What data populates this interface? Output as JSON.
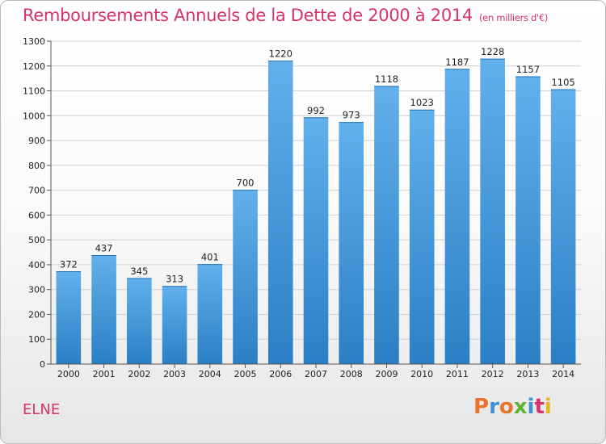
{
  "header": {
    "title": "Remboursements Annuels de la Dette de 2000 à 2014",
    "unit": "(en milliers d'€)"
  },
  "footer": {
    "city": "ELNE",
    "brand": "Proxiti",
    "brand_colors": [
      "#e8732a",
      "#3d8fd6",
      "#e8732a",
      "#5cb531",
      "#3d8fd6",
      "#d6336c",
      "#e8b520"
    ]
  },
  "colors": {
    "title": "#d6336c",
    "bar_light": "#62b0ec",
    "bar_dark": "#2a7fc4"
  },
  "chart_data": {
    "type": "bar",
    "categories": [
      "2000",
      "2001",
      "2002",
      "2003",
      "2004",
      "2005",
      "2006",
      "2007",
      "2008",
      "2009",
      "2010",
      "2011",
      "2012",
      "2013",
      "2014"
    ],
    "values": [
      372,
      437,
      345,
      313,
      401,
      700,
      1220,
      992,
      973,
      1118,
      1023,
      1187,
      1228,
      1157,
      1105
    ],
    "title": "Remboursements Annuels de la Dette de 2000 à 2014",
    "subtitle": "(en milliers d'€)",
    "ylim": [
      0,
      1300
    ],
    "yticks": [
      0,
      100,
      200,
      300,
      400,
      500,
      600,
      700,
      800,
      900,
      1000,
      1100,
      1200,
      1300
    ],
    "grid": true,
    "data_labels": true
  }
}
